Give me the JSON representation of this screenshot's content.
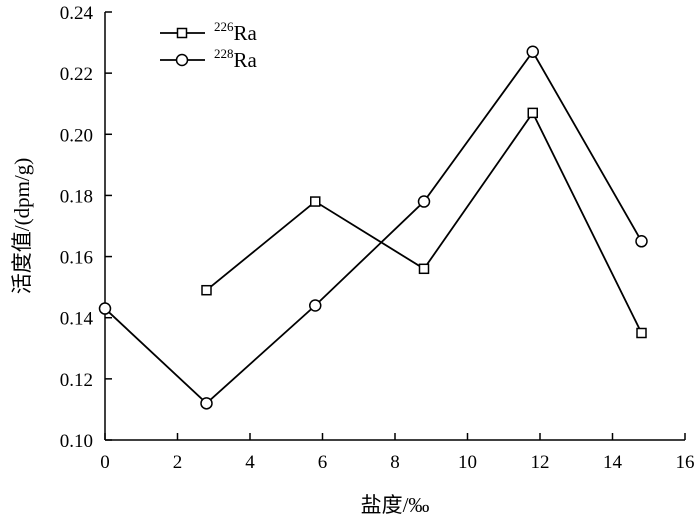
{
  "chart_data": {
    "type": "line",
    "xlabel": "盐度/‰",
    "ylabel": "活度值/(dpm/g)",
    "xlim": [
      0,
      16
    ],
    "ylim": [
      0.1,
      0.24
    ],
    "xticks": [
      0,
      2,
      4,
      6,
      8,
      10,
      12,
      14,
      16
    ],
    "yticks": [
      0.1,
      0.12,
      0.14,
      0.16,
      0.18,
      0.2,
      0.22,
      0.24
    ],
    "xtick_labels": [
      "0",
      "2",
      "4",
      "6",
      "8",
      "10",
      "12",
      "14",
      "16"
    ],
    "ytick_labels": [
      "0.10",
      "0.12",
      "0.14",
      "0.16",
      "0.18",
      "0.20",
      "0.22",
      "0.24"
    ],
    "grid": false,
    "legend_position": "top-left",
    "series": [
      {
        "name": "226Ra",
        "mass": "226",
        "element": "Ra",
        "marker": "square",
        "x": [
          2.8,
          5.8,
          8.8,
          11.8,
          14.8
        ],
        "y": [
          0.149,
          0.178,
          0.156,
          0.207,
          0.135
        ]
      },
      {
        "name": "228Ra",
        "mass": "228",
        "element": "Ra",
        "marker": "circle",
        "x": [
          0.0,
          2.8,
          5.8,
          8.8,
          11.8,
          14.8
        ],
        "y": [
          0.143,
          0.112,
          0.144,
          0.178,
          0.227,
          0.165
        ]
      }
    ]
  }
}
